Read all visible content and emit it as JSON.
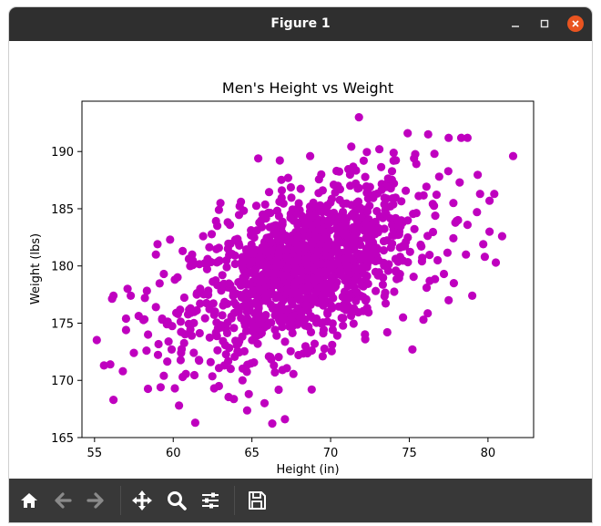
{
  "window": {
    "title": "Figure 1"
  },
  "toolbar": {
    "icons": [
      "home-icon",
      "back-arrow-icon",
      "forward-arrow-icon",
      "pan-move-icon",
      "zoom-magnifier-icon",
      "configure-subplots-icon",
      "save-floppy-icon"
    ]
  },
  "colors": {
    "marker": "#bf00bf",
    "titlebar": "#2f2f2f",
    "toolbar": "#383838",
    "close": "#e95420"
  },
  "chart_data": {
    "type": "scatter",
    "title": "Men's Height vs Weight",
    "xlabel": "Height (in)",
    "ylabel": "Weight (lbs)",
    "xlim": [
      54.2,
      82.9
    ],
    "ylim": [
      165.0,
      194.4
    ],
    "xticks": [
      "55",
      "60",
      "65",
      "70",
      "75",
      "80"
    ],
    "yticks": [
      "165",
      "170",
      "175",
      "180",
      "185",
      "190"
    ],
    "grid": false,
    "points": [
      [
        71.8,
        193.0
      ],
      [
        74.9,
        191.6
      ],
      [
        76.2,
        191.5
      ],
      [
        77.5,
        191.2
      ],
      [
        78.3,
        191.2
      ],
      [
        78.7,
        191.2
      ],
      [
        81.6,
        189.6
      ],
      [
        65.4,
        189.4
      ],
      [
        68.7,
        189.6
      ],
      [
        72.1,
        189.2
      ],
      [
        74.0,
        189.2
      ],
      [
        75.3,
        189.4
      ],
      [
        76.6,
        189.8
      ],
      [
        73.1,
        190.2
      ],
      [
        76.9,
        187.8
      ],
      [
        78.2,
        187.3
      ],
      [
        79.5,
        186.3
      ],
      [
        80.4,
        186.3
      ],
      [
        80.1,
        185.7
      ],
      [
        71.6,
        187.2
      ],
      [
        69.5,
        186.6
      ],
      [
        70.2,
        187.1
      ],
      [
        72.5,
        186.9
      ],
      [
        70.6,
        186.7
      ],
      [
        66.9,
        186.6
      ],
      [
        67.3,
        187.7
      ],
      [
        64.3,
        185.6
      ],
      [
        62.9,
        184.9
      ],
      [
        63.6,
        183.6
      ],
      [
        62.8,
        183.5
      ],
      [
        61.9,
        182.6
      ],
      [
        59.8,
        182.3
      ],
      [
        59.0,
        181.9
      ],
      [
        60.6,
        181.3
      ],
      [
        61.2,
        181.0
      ],
      [
        58.9,
        181.0
      ],
      [
        59.4,
        179.3
      ],
      [
        60.1,
        178.8
      ],
      [
        58.2,
        177.2
      ],
      [
        58.9,
        176.4
      ],
      [
        59.3,
        175.4
      ],
      [
        59.6,
        174.9
      ],
      [
        60.3,
        175.8
      ],
      [
        58.4,
        174.0
      ],
      [
        59.7,
        173.4
      ],
      [
        59.9,
        172.7
      ],
      [
        60.5,
        172.4
      ],
      [
        58.3,
        172.6
      ],
      [
        57.5,
        172.4
      ],
      [
        56.0,
        171.4
      ],
      [
        55.6,
        171.3
      ],
      [
        56.8,
        170.8
      ],
      [
        59.4,
        170.4
      ],
      [
        60.6,
        170.3
      ],
      [
        60.1,
        169.3
      ],
      [
        59.2,
        169.4
      ],
      [
        56.2,
        168.3
      ],
      [
        61.4,
        166.3
      ],
      [
        67.1,
        166.6
      ],
      [
        68.8,
        169.2
      ],
      [
        62.6,
        169.3
      ],
      [
        62.9,
        169.5
      ],
      [
        64.8,
        168.8
      ],
      [
        65.8,
        168.0
      ],
      [
        64.4,
        170.0
      ],
      [
        66.4,
        171.3
      ],
      [
        69.5,
        172.1
      ],
      [
        70.1,
        173.1
      ],
      [
        72.2,
        173.6
      ],
      [
        73.6,
        174.2
      ],
      [
        75.2,
        172.7
      ],
      [
        75.9,
        175.3
      ],
      [
        74.6,
        175.5
      ],
      [
        76.3,
        178.7
      ],
      [
        77.2,
        179.3
      ],
      [
        76.8,
        180.5
      ],
      [
        78.6,
        181.0
      ],
      [
        79.8,
        180.8
      ],
      [
        80.5,
        180.3
      ],
      [
        79.7,
        181.9
      ],
      [
        80.1,
        183.0
      ],
      [
        78.7,
        183.6
      ],
      [
        78.1,
        184.0
      ],
      [
        79.3,
        184.7
      ],
      [
        77.8,
        185.5
      ],
      [
        80.9,
        182.6
      ],
      [
        79.0,
        177.4
      ],
      [
        77.5,
        177.0
      ],
      [
        76.1,
        178.1
      ],
      [
        57.1,
        178.0
      ],
      [
        57.3,
        177.4
      ],
      [
        56.2,
        177.4
      ],
      [
        57.0,
        175.4
      ],
      [
        57.0,
        174.4
      ],
      [
        61.1,
        176.3
      ],
      [
        63.0,
        185.5
      ]
    ],
    "cluster": {
      "count": 1300,
      "x_mean": 68.3,
      "y_mean": 179.8,
      "x_sd": 3.5,
      "y_sd": 3.6,
      "r": 0.5
    }
  }
}
